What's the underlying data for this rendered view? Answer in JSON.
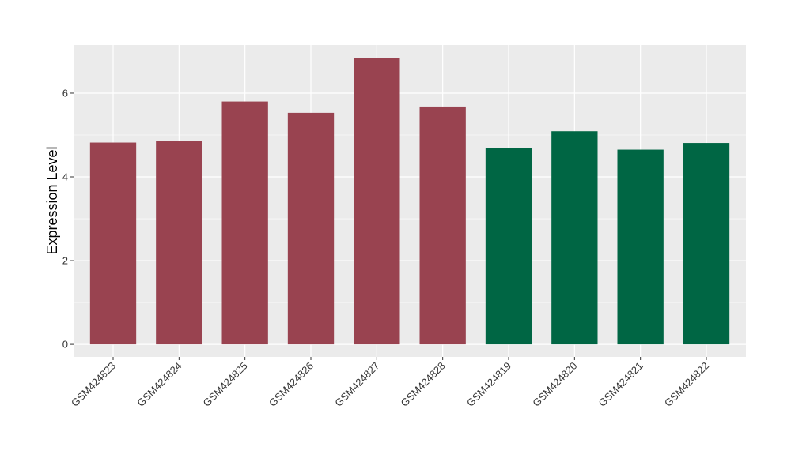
{
  "chart_data": {
    "type": "bar",
    "title": "",
    "xlabel": "",
    "ylabel": "Expression Level",
    "ylim": [
      -0.3,
      7.15
    ],
    "yticks": [
      0,
      2,
      4,
      6
    ],
    "grid": true,
    "panel_color": "#EBEBEB",
    "grid_color": "#FFFFFF",
    "categories": [
      "GSM424823",
      "GSM424824",
      "GSM424825",
      "GSM424826",
      "GSM424827",
      "GSM424828",
      "GSM424819",
      "GSM424820",
      "GSM424821",
      "GSM424822"
    ],
    "values": [
      4.82,
      4.86,
      5.8,
      5.53,
      6.83,
      5.68,
      4.69,
      5.09,
      4.65,
      4.81
    ],
    "colors": [
      "#994350",
      "#994350",
      "#994350",
      "#994350",
      "#994350",
      "#994350",
      "#006644",
      "#006644",
      "#006644",
      "#006644"
    ]
  }
}
